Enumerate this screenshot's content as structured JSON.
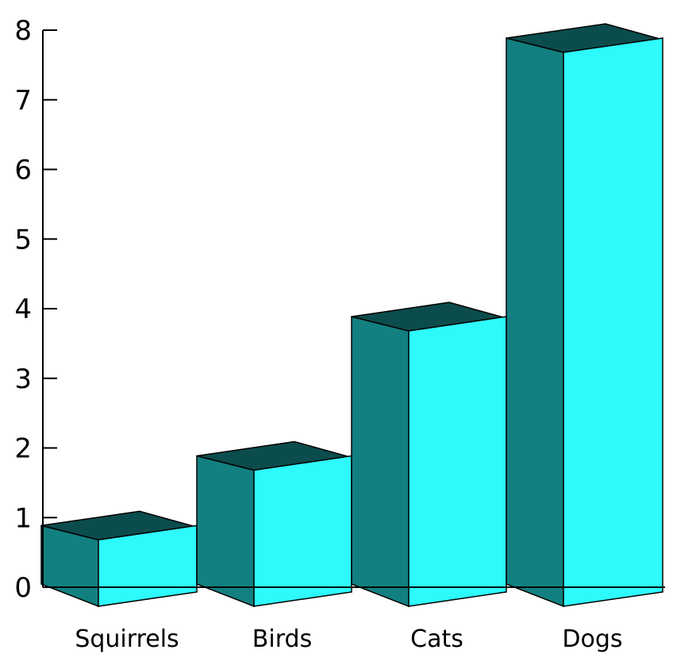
{
  "chart_data": {
    "type": "bar",
    "title": "",
    "xlabel": "",
    "ylabel": "",
    "categories": [
      "Squirrels",
      "Birds",
      "Cats",
      "Dogs"
    ],
    "values": [
      1,
      2,
      4,
      8
    ],
    "ylim": [
      0,
      8
    ],
    "yticks": [
      "0",
      "1",
      "2",
      "3",
      "4",
      "5",
      "6",
      "7",
      "8"
    ],
    "grid": false,
    "legend": "none",
    "style": "3d-box",
    "colors": {
      "front": "#2ef9fb",
      "side": "#128080",
      "top": "#0b4c4c",
      "axis": "#000000",
      "outline": "#000000"
    }
  }
}
